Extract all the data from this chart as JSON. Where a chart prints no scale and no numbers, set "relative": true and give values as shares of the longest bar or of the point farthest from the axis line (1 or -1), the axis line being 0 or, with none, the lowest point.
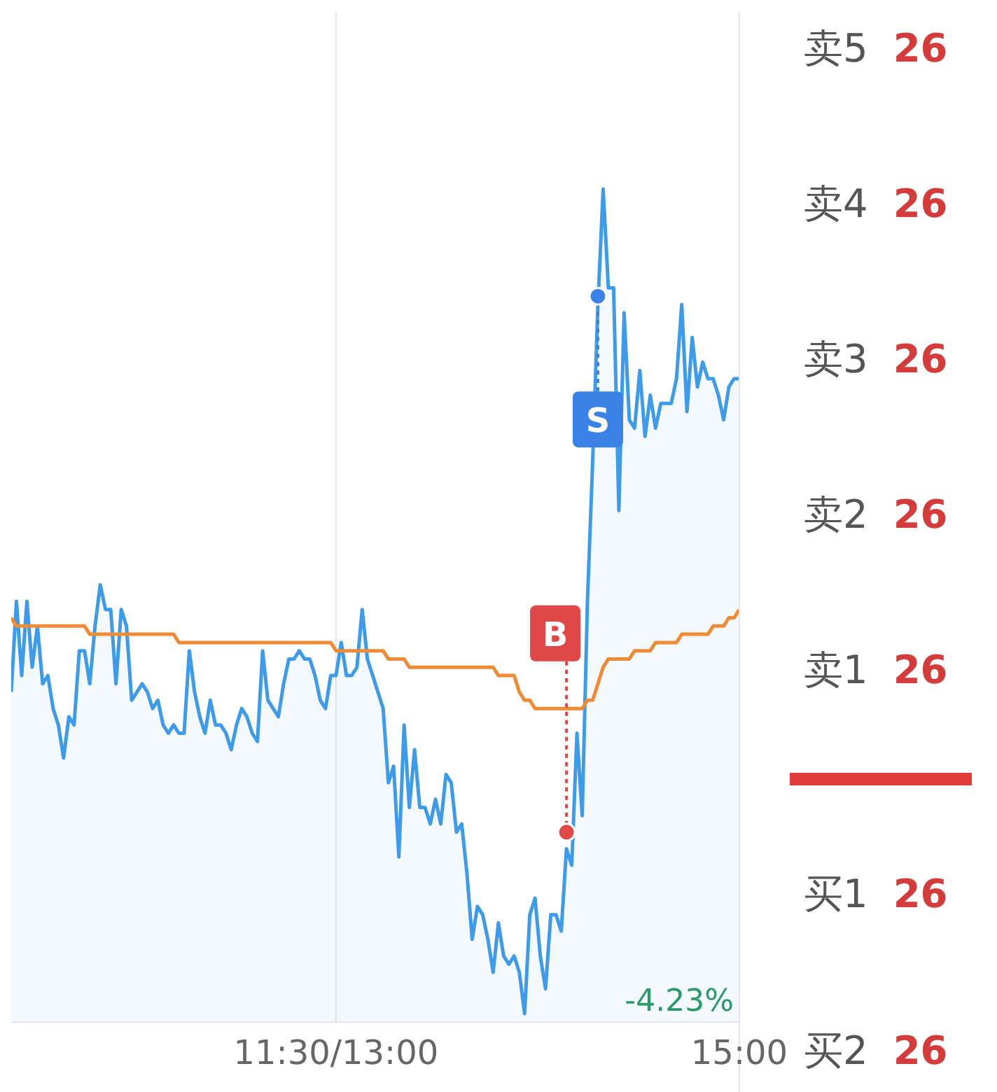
{
  "chart_data": {
    "type": "area",
    "relative": true,
    "grid": "x",
    "categories": [
      null,
      null,
      null,
      null,
      null,
      null,
      null,
      null,
      null,
      null,
      null,
      null,
      null,
      null,
      null,
      null,
      null,
      null,
      null,
      null,
      null,
      null,
      null,
      null,
      null,
      null,
      null,
      null,
      null,
      null,
      null,
      null,
      null,
      null,
      null,
      null,
      null,
      null,
      null,
      null,
      null,
      null,
      null,
      null,
      null,
      null,
      null,
      null,
      null,
      null,
      null,
      null,
      null,
      null,
      null,
      null,
      null,
      null,
      null,
      null,
      null,
      null,
      "11:30/13:00",
      null,
      null,
      null,
      null,
      null,
      null,
      null,
      null,
      null,
      null,
      null,
      null,
      null,
      null,
      null,
      null,
      null,
      null,
      null,
      null,
      null,
      null,
      null,
      null,
      null,
      null,
      null,
      null,
      null,
      null,
      null,
      null,
      null,
      null,
      null,
      null,
      null,
      null,
      null,
      null,
      null,
      null,
      null,
      null,
      null,
      null,
      null,
      null,
      null,
      null,
      null,
      null,
      null,
      null,
      null,
      null,
      null,
      null,
      null,
      null,
      null,
      null,
      null,
      null,
      null,
      null,
      null,
      null,
      null,
      null,
      null,
      null,
      null,
      null,
      null,
      null,
      "15:00"
    ],
    "series": [
      {
        "color": "#3d9be9",
        "values": [
          0.39,
          0.5,
          0.41,
          0.5,
          0.42,
          0.47,
          0.4,
          0.41,
          0.37,
          0.35,
          0.31,
          0.36,
          0.35,
          0.44,
          0.44,
          0.4,
          0.47,
          0.52,
          0.49,
          0.49,
          0.4,
          0.49,
          0.47,
          0.38,
          0.39,
          0.4,
          0.39,
          0.37,
          0.38,
          0.35,
          0.34,
          0.35,
          0.34,
          0.34,
          0.44,
          0.39,
          0.36,
          0.34,
          0.38,
          0.35,
          0.35,
          0.34,
          0.32,
          0.35,
          0.37,
          0.36,
          0.34,
          0.33,
          0.44,
          0.38,
          0.37,
          0.36,
          0.4,
          0.43,
          0.43,
          0.44,
          0.43,
          0.43,
          0.41,
          0.38,
          0.37,
          0.41,
          0.41,
          0.45,
          0.41,
          0.41,
          0.42,
          0.49,
          0.43,
          0.41,
          0.39,
          0.37,
          0.28,
          0.3,
          0.19,
          0.35,
          0.25,
          0.32,
          0.25,
          0.25,
          0.23,
          0.26,
          0.23,
          0.29,
          0.28,
          0.22,
          0.23,
          0.17,
          0.09,
          0.13,
          0.12,
          0.09,
          0.05,
          0.11,
          0.07,
          0.06,
          0.07,
          0.05,
          0,
          0.12,
          0.14,
          0.07,
          0.03,
          0.12,
          0.12,
          0.1,
          0.2,
          0.18,
          0.34,
          0.24,
          0.5,
          0.67,
          0.86,
          1,
          0.88,
          0.88,
          0.61,
          0.85,
          0.72,
          0.71,
          0.78,
          0.7,
          0.75,
          0.71,
          0.74,
          0.74,
          0.74,
          0.77,
          0.86,
          0.73,
          0.82,
          0.76,
          0.79,
          0.77,
          0.77,
          0.75,
          0.72,
          0.76,
          0.77,
          0.77
        ]
      },
      {
        "type": "line",
        "color": "#ef8a35",
        "values": [
          0.48,
          0.47,
          0.47,
          0.47,
          0.47,
          0.47,
          0.47,
          0.47,
          0.47,
          0.47,
          0.47,
          0.47,
          0.47,
          0.47,
          0.47,
          0.46,
          0.46,
          0.46,
          0.46,
          0.46,
          0.46,
          0.46,
          0.46,
          0.46,
          0.46,
          0.46,
          0.46,
          0.46,
          0.46,
          0.46,
          0.46,
          0.46,
          0.45,
          0.45,
          0.45,
          0.45,
          0.45,
          0.45,
          0.45,
          0.45,
          0.45,
          0.45,
          0.45,
          0.45,
          0.45,
          0.45,
          0.45,
          0.45,
          0.45,
          0.45,
          0.45,
          0.45,
          0.45,
          0.45,
          0.45,
          0.45,
          0.45,
          0.45,
          0.45,
          0.45,
          0.45,
          0.45,
          0.44,
          0.44,
          0.44,
          0.44,
          0.44,
          0.44,
          0.44,
          0.44,
          0.44,
          0.44,
          0.43,
          0.43,
          0.43,
          0.43,
          0.42,
          0.42,
          0.42,
          0.42,
          0.42,
          0.42,
          0.42,
          0.42,
          0.42,
          0.42,
          0.42,
          0.42,
          0.42,
          0.42,
          0.42,
          0.42,
          0.42,
          0.41,
          0.41,
          0.41,
          0.41,
          0.39,
          0.38,
          0.38,
          0.37,
          0.37,
          0.37,
          0.37,
          0.37,
          0.37,
          0.37,
          0.37,
          0.37,
          0.37,
          0.38,
          0.38,
          0.4,
          0.42,
          0.43,
          0.43,
          0.43,
          0.43,
          0.43,
          0.44,
          0.44,
          0.44,
          0.44,
          0.45,
          0.45,
          0.45,
          0.45,
          0.45,
          0.46,
          0.46,
          0.46,
          0.46,
          0.46,
          0.46,
          0.47,
          0.47,
          0.47,
          0.48,
          0.48,
          0.49
        ]
      },
      {
        "type": "scatter",
        "name": "B",
        "color": "#e04848",
        "values": [
          null,
          null,
          null,
          null,
          null,
          null,
          null,
          null,
          null,
          null,
          null,
          null,
          null,
          null,
          null,
          null,
          null,
          null,
          null,
          null,
          null,
          null,
          null,
          null,
          null,
          null,
          null,
          null,
          null,
          null,
          null,
          null,
          null,
          null,
          null,
          null,
          null,
          null,
          null,
          null,
          null,
          null,
          null,
          null,
          null,
          null,
          null,
          null,
          null,
          null,
          null,
          null,
          null,
          null,
          null,
          null,
          null,
          null,
          null,
          null,
          null,
          null,
          null,
          null,
          null,
          null,
          null,
          null,
          null,
          null,
          null,
          null,
          null,
          null,
          null,
          null,
          null,
          null,
          null,
          null,
          null,
          null,
          null,
          null,
          null,
          null,
          null,
          null,
          null,
          null,
          null,
          null,
          null,
          null,
          null,
          null,
          null,
          null,
          null,
          null,
          null,
          null,
          null,
          null,
          null,
          null,
          0.22,
          null,
          null,
          null,
          null,
          null,
          null,
          null,
          null,
          null,
          null,
          null,
          null,
          null,
          null,
          null,
          null,
          null,
          null,
          null,
          null,
          null,
          null,
          null,
          null,
          null,
          null,
          null,
          null,
          null,
          null,
          null,
          null,
          null
        ]
      },
      {
        "type": "scatter",
        "name": "S",
        "color": "#3b82e6",
        "values": [
          null,
          null,
          null,
          null,
          null,
          null,
          null,
          null,
          null,
          null,
          null,
          null,
          null,
          null,
          null,
          null,
          null,
          null,
          null,
          null,
          null,
          null,
          null,
          null,
          null,
          null,
          null,
          null,
          null,
          null,
          null,
          null,
          null,
          null,
          null,
          null,
          null,
          null,
          null,
          null,
          null,
          null,
          null,
          null,
          null,
          null,
          null,
          null,
          null,
          null,
          null,
          null,
          null,
          null,
          null,
          null,
          null,
          null,
          null,
          null,
          null,
          null,
          null,
          null,
          null,
          null,
          null,
          null,
          null,
          null,
          null,
          null,
          null,
          null,
          null,
          null,
          null,
          null,
          null,
          null,
          null,
          null,
          null,
          null,
          null,
          null,
          null,
          null,
          null,
          null,
          null,
          null,
          null,
          null,
          null,
          null,
          null,
          null,
          null,
          null,
          null,
          null,
          null,
          null,
          null,
          null,
          null,
          null,
          null,
          null,
          null,
          null,
          0.87,
          null,
          null,
          null,
          null,
          null,
          null,
          null,
          null,
          null,
          null,
          null,
          null,
          null,
          null,
          null,
          null,
          null,
          null,
          null,
          null,
          null,
          null,
          null,
          null,
          null,
          null,
          null
        ]
      }
    ],
    "annotations": [
      "-4.23%",
      "卖5 26",
      "卖4 26",
      "卖3 26",
      "卖2 26",
      "卖1 26",
      "买1 26",
      "买2 26"
    ]
  }
}
